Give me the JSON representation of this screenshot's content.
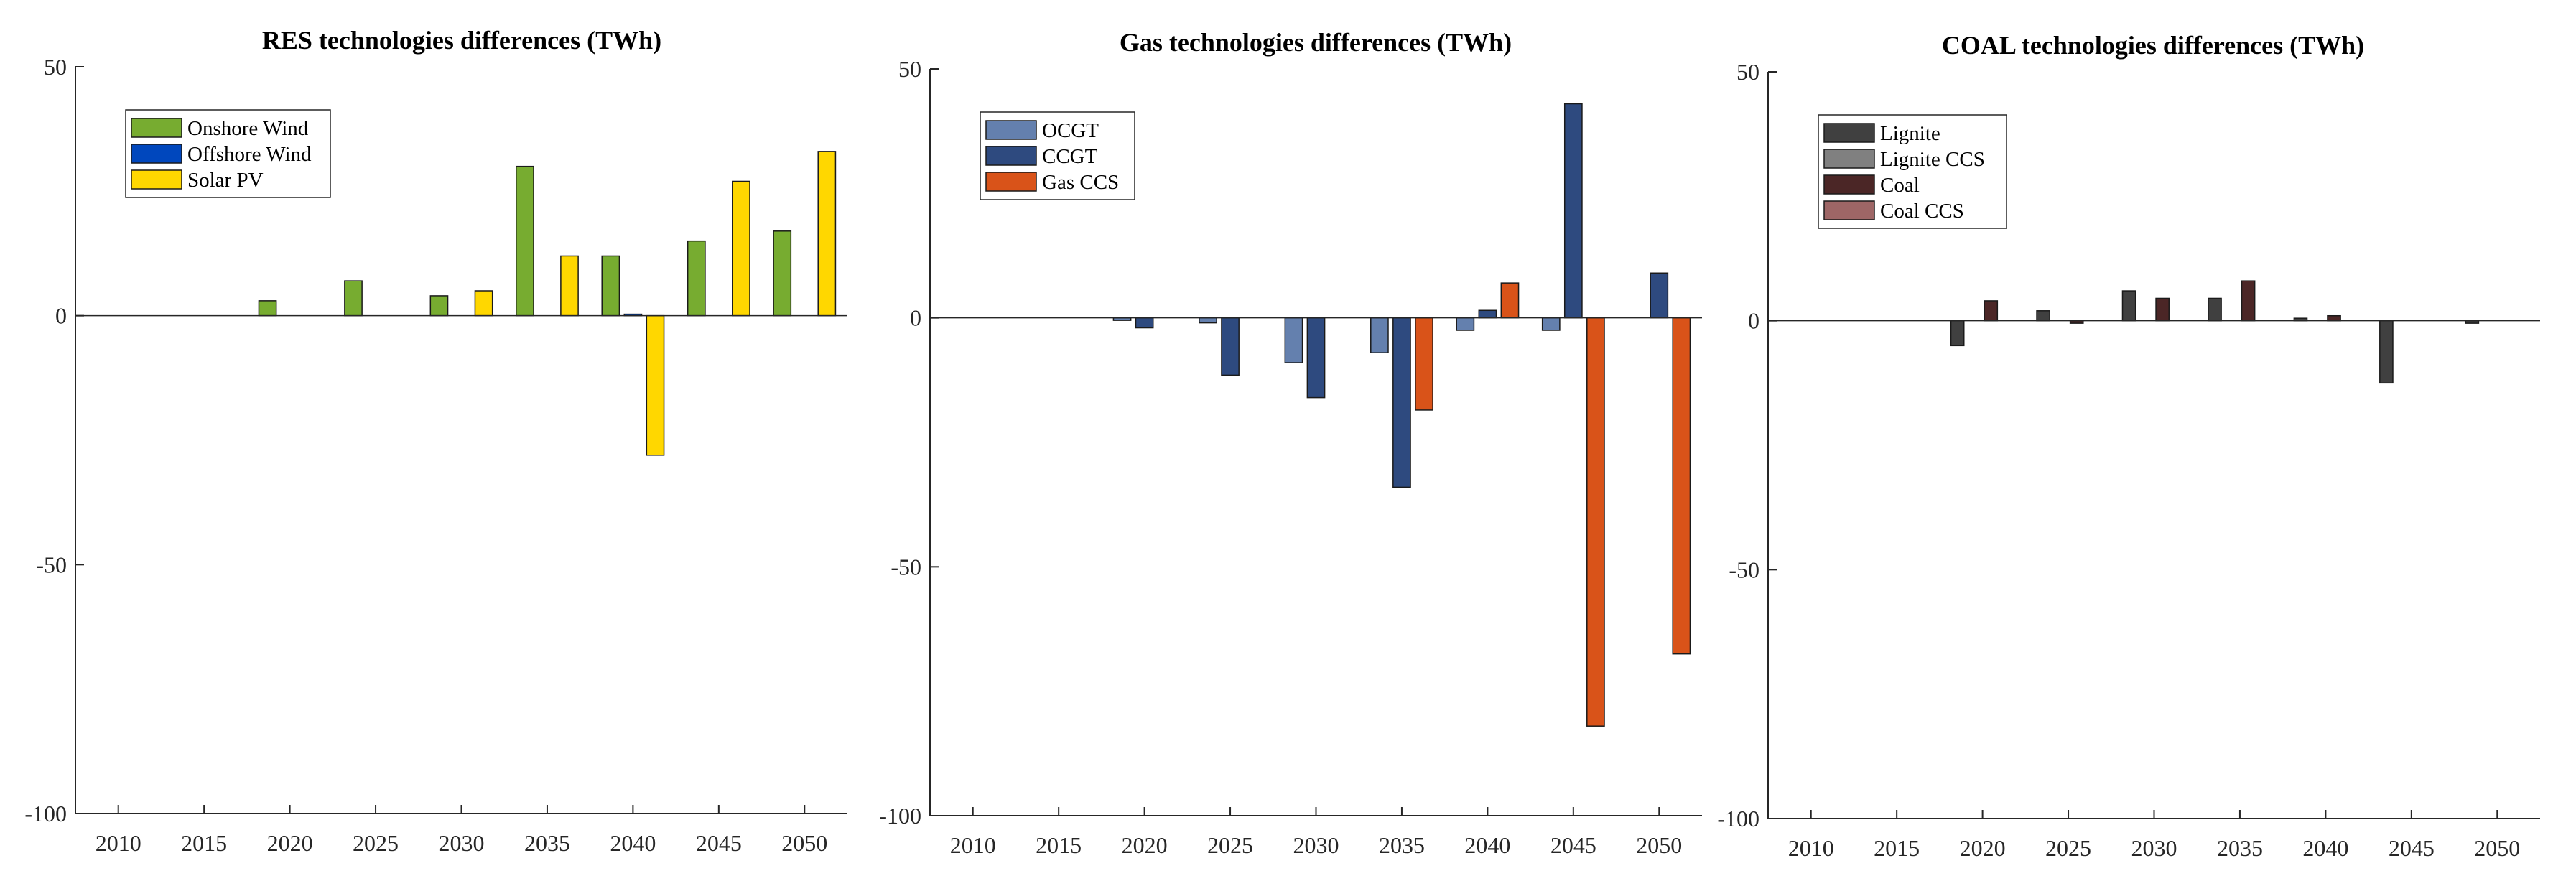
{
  "chart_data": [
    {
      "type": "bar",
      "title": "RES technologies differences (TWh)",
      "xlabel": "",
      "ylabel": "",
      "categories": [
        "2010",
        "2015",
        "2020",
        "2025",
        "2030",
        "2035",
        "2040",
        "2045",
        "2050"
      ],
      "ylim": [
        -100,
        50
      ],
      "yticks": [
        50,
        0,
        -50,
        -100
      ],
      "legend_position": "top-left",
      "series": [
        {
          "name": "Onshore Wind",
          "color": "#77AC30",
          "values": [
            0,
            0,
            3,
            7,
            4,
            30,
            12,
            15,
            17
          ]
        },
        {
          "name": "Offshore Wind",
          "color": "#0047BD",
          "values": [
            0,
            0,
            0,
            0,
            0,
            0,
            0.3,
            0,
            0
          ]
        },
        {
          "name": "Solar PV",
          "color": "#FFD700",
          "values": [
            0,
            0,
            0,
            0,
            5,
            12,
            -28,
            27,
            33
          ]
        }
      ]
    },
    {
      "type": "bar",
      "title": "Gas technologies differences (TWh)",
      "xlabel": "",
      "ylabel": "",
      "categories": [
        "2010",
        "2015",
        "2020",
        "2025",
        "2030",
        "2035",
        "2040",
        "2045",
        "2050"
      ],
      "ylim": [
        -100,
        50
      ],
      "yticks": [
        50,
        0,
        -50,
        -100
      ],
      "legend_position": "top-left",
      "series": [
        {
          "name": "OCGT",
          "color": "#6480AE",
          "values": [
            0,
            0,
            -0.5,
            -1,
            -9,
            -7,
            -2.5,
            -2.5,
            0
          ]
        },
        {
          "name": "CCGT",
          "color": "#2E4A7F",
          "values": [
            0,
            0,
            -2,
            -11.5,
            -16,
            -34,
            1.5,
            43,
            9
          ]
        },
        {
          "name": "Gas CCS",
          "color": "#D95319",
          "values": [
            0,
            0,
            0,
            0,
            0,
            -18.5,
            7,
            -82,
            -67.5
          ]
        }
      ]
    },
    {
      "type": "bar",
      "title": "COAL technologies differences (TWh)",
      "xlabel": "",
      "ylabel": "",
      "categories": [
        "2010",
        "2015",
        "2020",
        "2025",
        "2030",
        "2035",
        "2040",
        "2045",
        "2050"
      ],
      "ylim": [
        -100,
        50
      ],
      "yticks": [
        50,
        0,
        -50,
        -100
      ],
      "legend_position": "top-left",
      "series": [
        {
          "name": "Lignite",
          "color": "#404040",
          "values": [
            0,
            0,
            -5,
            2,
            6,
            4.5,
            0.5,
            -12.5,
            -0.5
          ]
        },
        {
          "name": "Lignite CCS",
          "color": "#808080",
          "values": [
            0,
            0,
            0,
            0,
            0,
            0,
            0,
            0,
            0
          ]
        },
        {
          "name": "Coal",
          "color": "#4B2626",
          "values": [
            0,
            0,
            4,
            -0.5,
            4.5,
            8,
            1,
            0,
            0
          ]
        },
        {
          "name": "Coal CCS",
          "color": "#9E6666",
          "values": [
            0,
            0,
            0,
            0,
            0,
            0,
            0,
            0,
            0
          ]
        }
      ]
    }
  ]
}
